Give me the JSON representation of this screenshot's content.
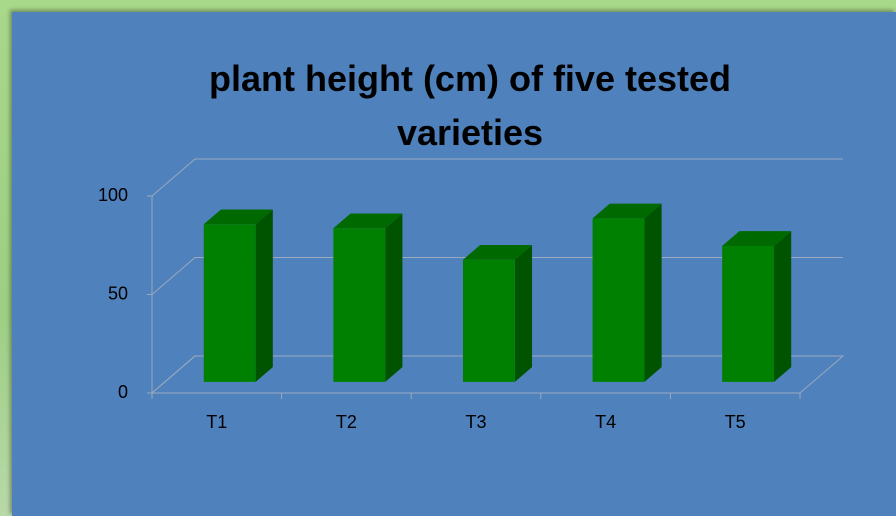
{
  "chart_data": {
    "type": "bar",
    "title": "plant height (cm) of five tested varieties",
    "categories": [
      "T1",
      "T2",
      "T3",
      "T4",
      "T5"
    ],
    "values": [
      80,
      78,
      62,
      83,
      69
    ],
    "color": "#008000",
    "ylim": [
      0,
      100
    ],
    "yticks": [
      0,
      50,
      100
    ],
    "grid": true
  }
}
